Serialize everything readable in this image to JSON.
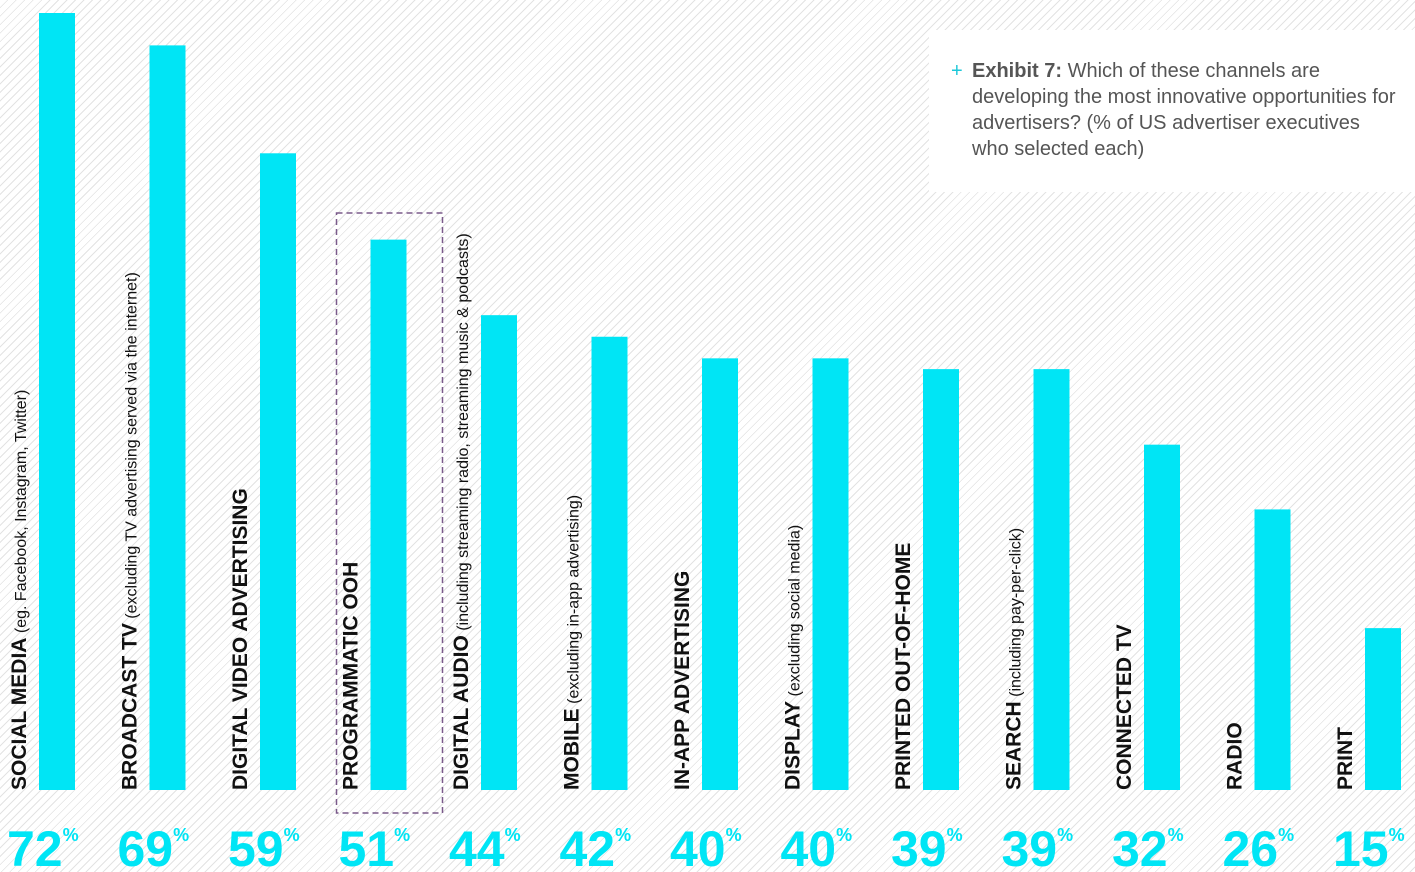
{
  "chart_data": {
    "type": "bar",
    "title_label": "Exhibit 7:",
    "title": "Which of these channels are developing the most innovative opportunities for advertisers? (% of US advertiser executives who selected each)",
    "value_suffix": "%",
    "ylim": [
      0,
      72
    ],
    "highlight_index": 3,
    "colors": {
      "bar": "#00e5f5",
      "value_text": "#00e5f5",
      "highlight_border": "#7a5a8a",
      "plus": "#1ec8d8"
    },
    "categories": [
      {
        "label": "SOCIAL MEDIA",
        "detail": "(eg. Facebook, Instagram, Twitter)"
      },
      {
        "label": "BROADCAST TV",
        "detail": "(excluding TV advertising served via the internet)"
      },
      {
        "label": "DIGITAL VIDEO ADVERTISING",
        "detail": ""
      },
      {
        "label": "PROGRAMMATIC OOH",
        "detail": ""
      },
      {
        "label": "DIGITAL AUDIO",
        "detail": "(including streaming radio, streaming music & podcasts)"
      },
      {
        "label": "MOBILE",
        "detail": "(excluding in-app advertising)"
      },
      {
        "label": "IN-APP ADVERTISING",
        "detail": ""
      },
      {
        "label": "DISPLAY",
        "detail": "(excluding social media)"
      },
      {
        "label": "PRINTED OUT-OF-HOME",
        "detail": ""
      },
      {
        "label": "SEARCH",
        "detail": "(including pay-per-click)"
      },
      {
        "label": "CONNECTED TV",
        "detail": ""
      },
      {
        "label": "RADIO",
        "detail": ""
      },
      {
        "label": "PRINT",
        "detail": ""
      }
    ],
    "values": [
      72,
      69,
      59,
      51,
      44,
      42,
      40,
      40,
      39,
      39,
      32,
      26,
      15
    ],
    "value_labels": [
      "72",
      "69",
      "59",
      "51",
      "44",
      "42",
      "40",
      "40",
      "39",
      "39",
      "32",
      "26",
      "15"
    ]
  }
}
